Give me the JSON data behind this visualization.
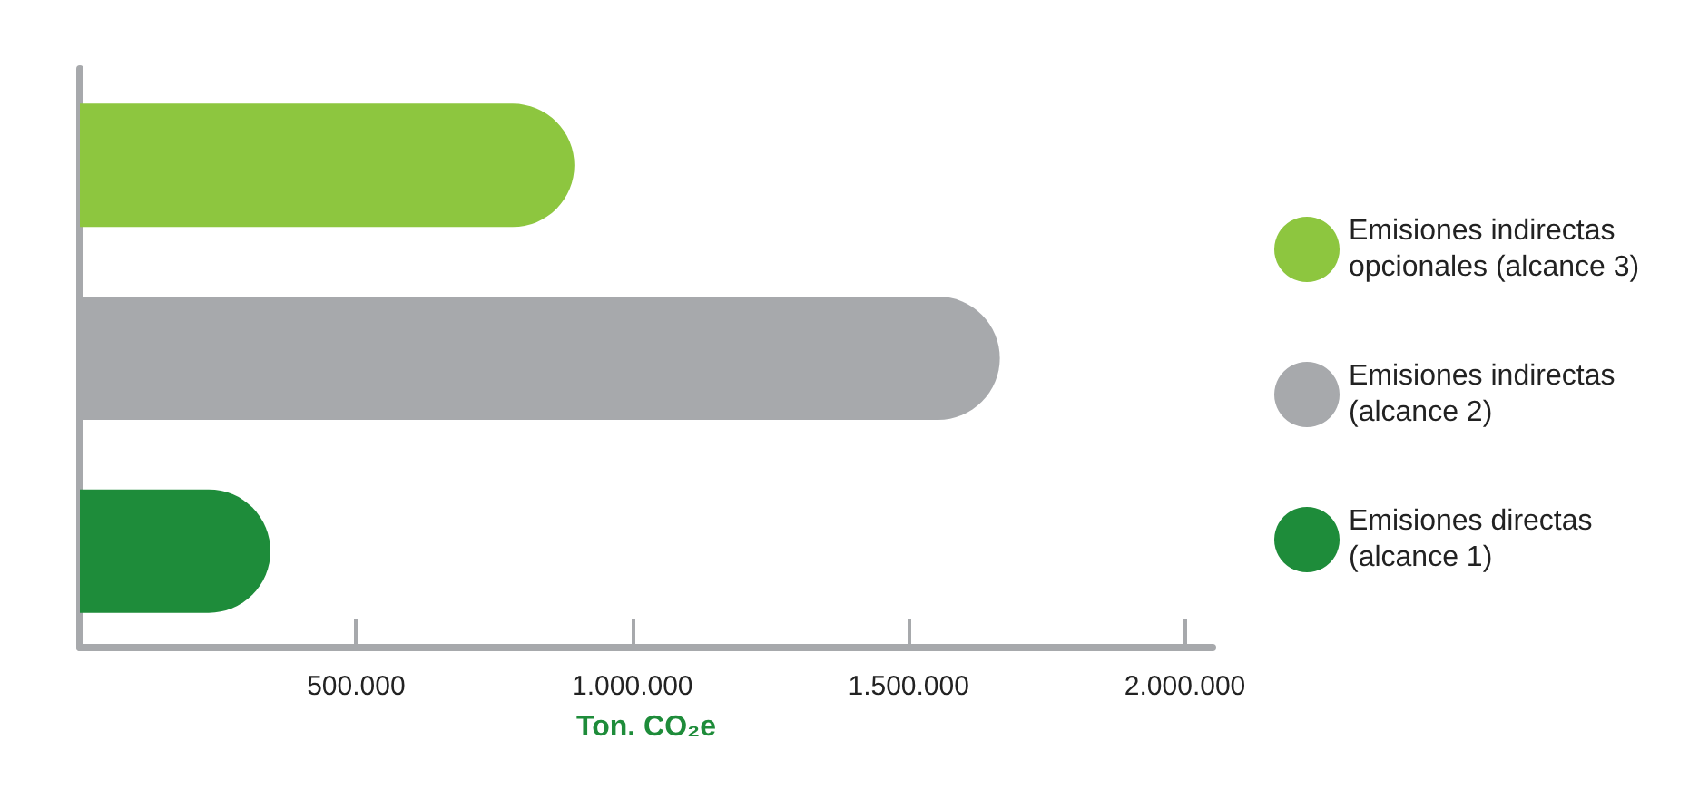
{
  "chart_data": {
    "type": "bar",
    "orientation": "horizontal",
    "categories": [
      null,
      null,
      null
    ],
    "series": [
      {
        "name": "Emisiones indirectas opcionales (alcance 3)",
        "color": "#8dc63f",
        "values": [
          895000,
          null,
          null
        ]
      },
      {
        "name": "Emisiones indirectas (alcance 2)",
        "color": "#a7a9ac",
        "values": [
          null,
          1665000,
          null
        ]
      },
      {
        "name": "Emisiones directas (alcance 1)",
        "color": "#1e8c3a",
        "values": [
          null,
          null,
          345000
        ]
      }
    ],
    "xlim": [
      0,
      2050000
    ],
    "xticks": [
      {
        "value": 500000,
        "label": "500.000"
      },
      {
        "value": 1000000,
        "label": "1.000.000"
      },
      {
        "value": 1500000,
        "label": "1.500.000"
      },
      {
        "value": 2000000,
        "label": "2.000.000"
      }
    ],
    "xlabel": "Ton. CO₂e",
    "grid": false,
    "legend": "right"
  }
}
